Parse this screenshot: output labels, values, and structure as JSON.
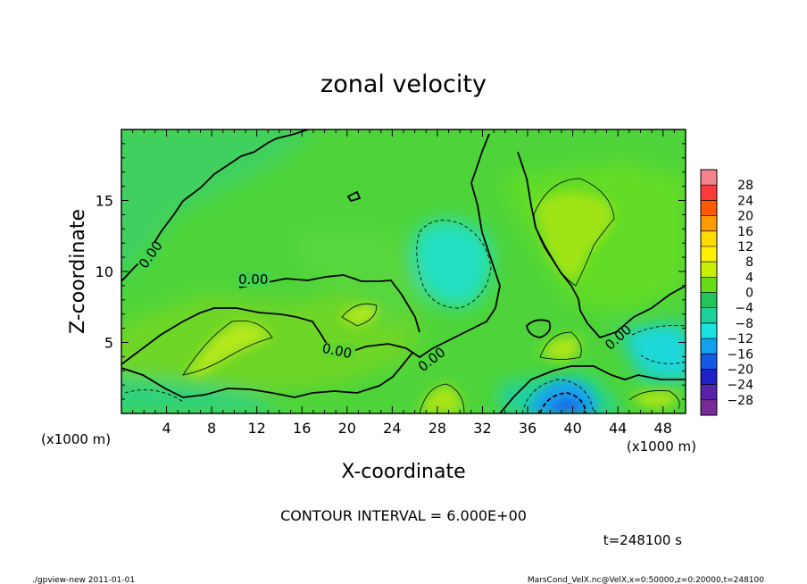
{
  "chart_data": {
    "type": "heatmap",
    "title": "zonal velocity",
    "xlabel": "X-coordinate",
    "ylabel": "Z-coordinate",
    "x_unit_label": "(x1000 m)",
    "z_unit_label": "(x1000 m)",
    "xlim": [
      0,
      50
    ],
    "ylim": [
      0,
      20
    ],
    "x_ticks": [
      4,
      8,
      12,
      16,
      20,
      24,
      28,
      32,
      36,
      40,
      44,
      48
    ],
    "y_ticks": [
      5,
      10,
      15
    ],
    "colorbar_levels": [
      28,
      24,
      20,
      16,
      12,
      8,
      4,
      0,
      -4,
      -8,
      -12,
      -16,
      -20,
      -24,
      -28
    ],
    "colorbar_colors": [
      "#f4848c",
      "#ff3a3a",
      "#ff5a00",
      "#ff9a00",
      "#ffdc00",
      "#fff000",
      "#c8f000",
      "#66dc16",
      "#22c55a",
      "#1cd29a",
      "#18e2e2",
      "#14a0f0",
      "#1458e6",
      "#2020c8",
      "#5a22aa",
      "#7a2a9a"
    ],
    "contour_labels": [
      "0.00",
      "0.00",
      "0.00",
      "0.00",
      "0.00"
    ],
    "contour_interval_text": "CONTOUR INTERVAL = 6.000E+00",
    "time_text": "t=248100 s",
    "legend": "right"
  },
  "footer": {
    "left": "./gpview-new  2011-01-01",
    "right": "MarsCond_VelX.nc@VelX,x=0:50000,z=0:20000,t=248100"
  }
}
